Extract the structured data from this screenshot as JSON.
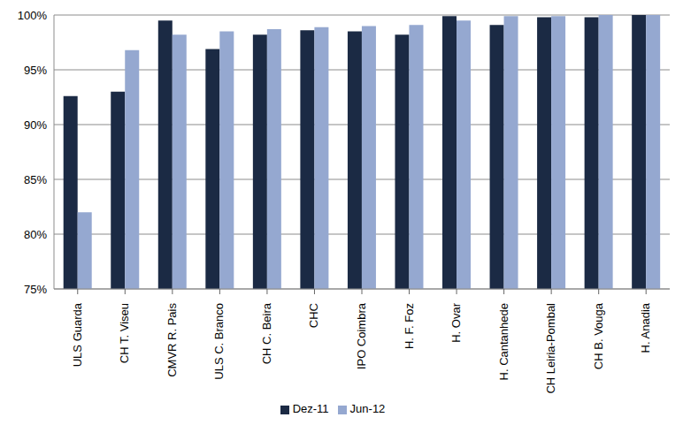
{
  "chart_data": {
    "type": "bar",
    "categories": [
      "ULS Guarda",
      "CH T. Viseu",
      "CMVR R. Pais",
      "ULS C. Branco",
      "CH C. Beira",
      "CHC",
      "IPO Coimbra",
      "H. F. Foz",
      "H. Ovar",
      "H. Cantanhede",
      "CH Leiria-Pombal",
      "CH B. Vouga",
      "H. Anadia"
    ],
    "series": [
      {
        "name": "Dez-11",
        "color": "#1b2a44",
        "values": [
          92.6,
          93.0,
          99.5,
          96.9,
          98.2,
          98.6,
          98.5,
          98.2,
          99.9,
          99.1,
          99.8,
          99.8,
          100
        ]
      },
      {
        "name": "Jun-12",
        "color": "#95a8d0",
        "values": [
          82.0,
          96.8,
          98.2,
          98.5,
          98.7,
          98.9,
          99.0,
          99.1,
          99.5,
          99.9,
          99.9,
          100.0,
          100
        ]
      }
    ],
    "ylim": [
      75,
      100
    ],
    "yticks": [
      {
        "value": 75,
        "label": "75%"
      },
      {
        "value": 80,
        "label": "80%"
      },
      {
        "value": 85,
        "label": "85%"
      },
      {
        "value": 90,
        "label": "90%"
      },
      {
        "value": 95,
        "label": "95%"
      },
      {
        "value": 100,
        "label": "100%"
      }
    ],
    "grid": true,
    "legend": "bottom"
  }
}
